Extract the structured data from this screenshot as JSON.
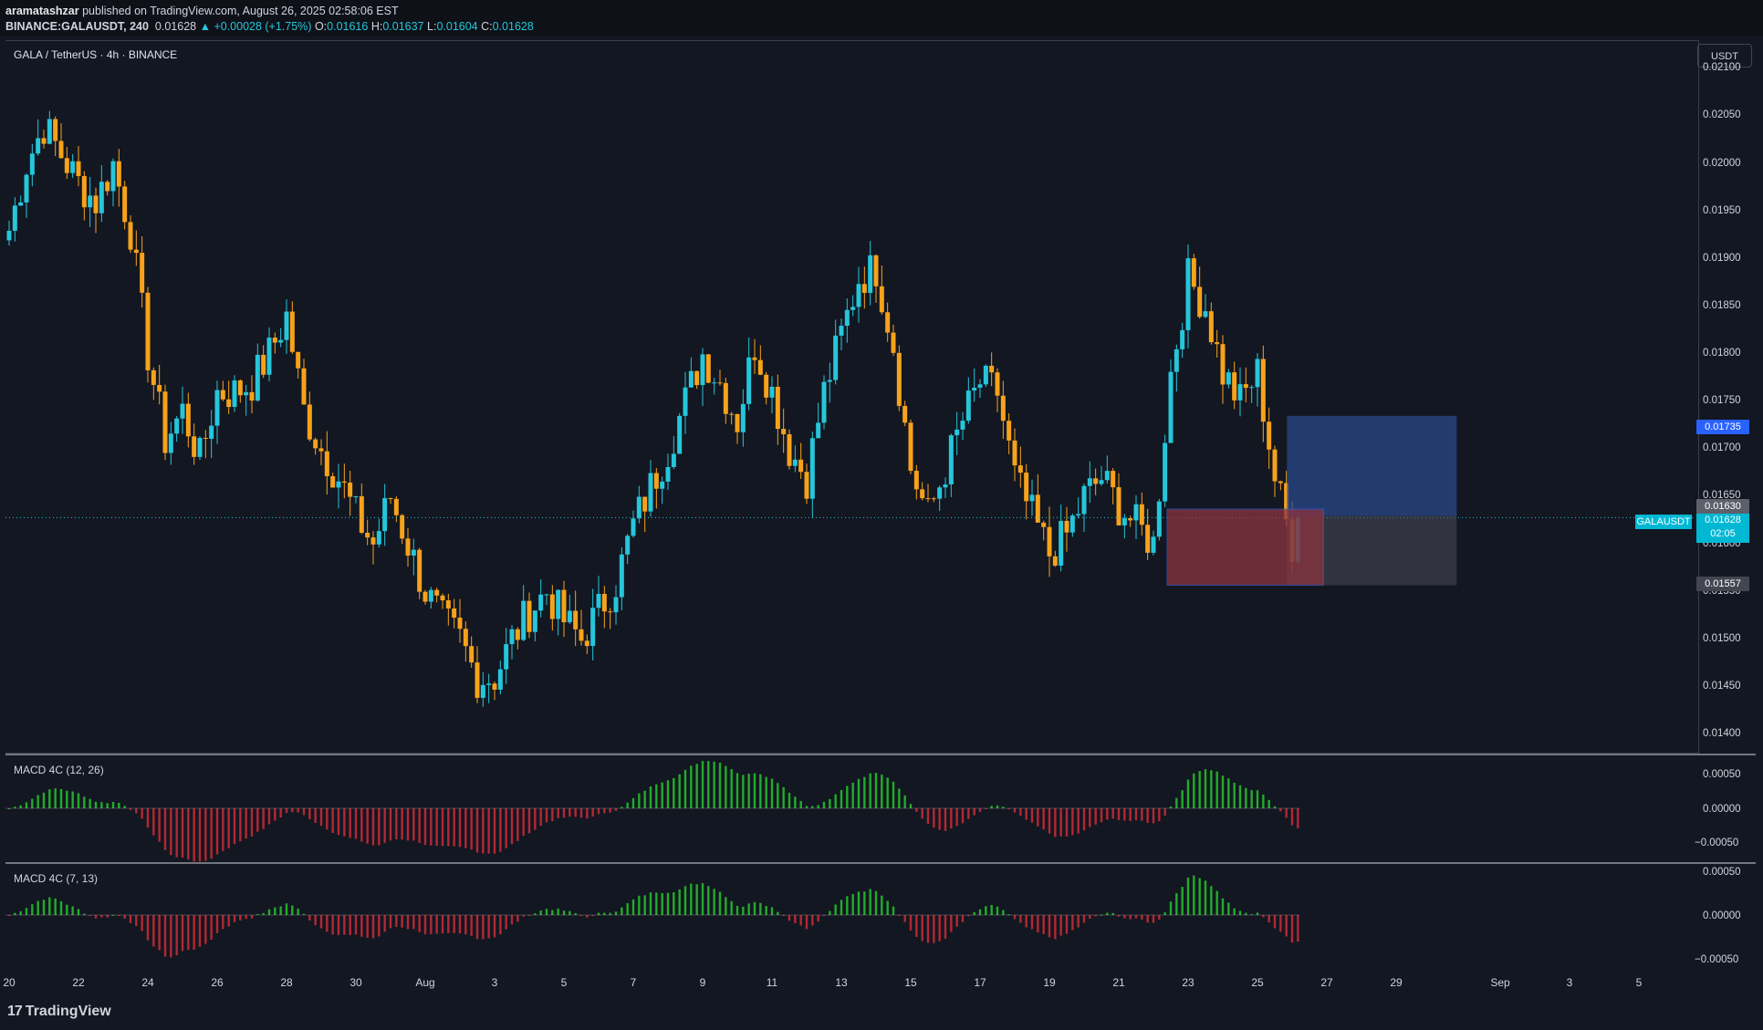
{
  "header": {
    "publisher_user": "aramatashzar",
    "publisher_text": " published on TradingView.com, August 26, 2025 02:58:06 EST",
    "symbol_line": "BINANCE:GALAUSDT, 240",
    "last": "0.01628",
    "change": "▲ +0.00028 (+1.75%)",
    "open_label": "O:",
    "open": "0.01616",
    "high_label": "H:",
    "high": "0.01637",
    "low_label": "L:",
    "low": "0.01604",
    "close_label": "C:",
    "close": "0.01628"
  },
  "chart_title": "GALA / TetherUS · 4h · BINANCE",
  "currency_button": "USDT",
  "price_axis": [
    "0.02100",
    "0.02050",
    "0.02000",
    "0.01950",
    "0.01900",
    "0.01850",
    "0.01800",
    "0.01750",
    "0.01700",
    "0.01650",
    "0.01600",
    "0.01550",
    "0.01500",
    "0.01450",
    "0.01400"
  ],
  "price_tags": {
    "target": "0.01735",
    "entry": "0.01630",
    "current_symbol": "GALAUSDT",
    "current": "0.01628",
    "countdown": "02:05",
    "stop": "0.01557"
  },
  "indicators": [
    {
      "label": "MACD 4C (12, 26)",
      "axis": [
        "0.00050",
        "0.00000",
        "−0.00050"
      ]
    },
    {
      "label": "MACD 4C (7, 13)",
      "axis": [
        "0.00050",
        "0.00000",
        "−0.00050"
      ]
    }
  ],
  "time_axis": [
    "20",
    "22",
    "24",
    "26",
    "28",
    "30",
    "Aug",
    "3",
    "5",
    "7",
    "9",
    "11",
    "13",
    "15",
    "17",
    "19",
    "21",
    "23",
    "25",
    "27",
    "29",
    "Sep",
    "3",
    "5"
  ],
  "brand": {
    "logo": "17",
    "name": "TradingView"
  },
  "colors": {
    "up": "#26c6da",
    "down": "#f7a21b",
    "bg": "#131722",
    "macd_pos": "#22ab2a",
    "macd_neg": "#b22833",
    "target_zone": "#2a4a8a",
    "stop_zone": "#8a3340"
  },
  "chart_data": {
    "type": "candlestick",
    "title": "GALA / TetherUS · 4h · BINANCE",
    "ylim": [
      0.0138,
      0.0213
    ],
    "x_range": [
      "Jul 20",
      "Sep 6"
    ],
    "x_ticks": [
      "20",
      "22",
      "24",
      "26",
      "28",
      "30",
      "Aug",
      "3",
      "5",
      "7",
      "9",
      "11",
      "13",
      "15",
      "17",
      "19",
      "21",
      "23",
      "25",
      "27",
      "29",
      "Sep",
      "3",
      "5"
    ],
    "close_path_approx": [
      [
        "Jul 20",
        0.0193
      ],
      [
        "Jul 20 12h",
        0.02
      ],
      [
        "Jul 21",
        0.0204
      ],
      [
        "Jul 21 12h",
        0.0201
      ],
      [
        "Jul 22",
        0.0198
      ],
      [
        "Jul 22 12h",
        0.0196
      ],
      [
        "Jul 23",
        0.02
      ],
      [
        "Jul 23 12h",
        0.0193
      ],
      [
        "Jul 24",
        0.018
      ],
      [
        "Jul 24 12h",
        0.0171
      ],
      [
        "Jul 25",
        0.0174
      ],
      [
        "Jul 25 12h",
        0.0169
      ],
      [
        "Jul 26",
        0.0176
      ],
      [
        "Jul 26 12h",
        0.0176
      ],
      [
        "Jul 27",
        0.0177
      ],
      [
        "Jul 27 12h",
        0.018
      ],
      [
        "Jul 28",
        0.0184
      ],
      [
        "Jul 28 12h",
        0.0174
      ],
      [
        "Jul 29",
        0.017
      ],
      [
        "Jul 29 12h",
        0.0167
      ],
      [
        "Jul 30",
        0.0163
      ],
      [
        "Jul 30 12h",
        0.016
      ],
      [
        "Jul 31",
        0.0165
      ],
      [
        "Jul 31 12h",
        0.016
      ],
      [
        "Aug 1",
        0.0155
      ],
      [
        "Aug 1 12h",
        0.0152
      ],
      [
        "Aug 2",
        0.015
      ],
      [
        "Aug 2 12h",
        0.0146
      ],
      [
        "Aug 3",
        0.0146
      ],
      [
        "Aug 3 12h",
        0.015
      ],
      [
        "Aug 4",
        0.0153
      ],
      [
        "Aug 4 12h",
        0.0155
      ],
      [
        "Aug 5",
        0.0152
      ],
      [
        "Aug 5 12h",
        0.015
      ],
      [
        "Aug 6",
        0.0153
      ],
      [
        "Aug 6 12h",
        0.0156
      ],
      [
        "Aug 7",
        0.0162
      ],
      [
        "Aug 7 12h",
        0.0166
      ],
      [
        "Aug 8",
        0.017
      ],
      [
        "Aug 8 12h",
        0.0175
      ],
      [
        "Aug 9",
        0.018
      ],
      [
        "Aug 9 12h",
        0.0177
      ],
      [
        "Aug 10",
        0.0173
      ],
      [
        "Aug 10 12h",
        0.0181
      ],
      [
        "Aug 11",
        0.0176
      ],
      [
        "Aug 11 12h",
        0.017
      ],
      [
        "Aug 12",
        0.0167
      ],
      [
        "Aug 12 12h",
        0.0176
      ],
      [
        "Aug 13",
        0.0182
      ],
      [
        "Aug 13 12h",
        0.0188
      ],
      [
        "Aug 14",
        0.0189
      ],
      [
        "Aug 14 12h",
        0.0181
      ],
      [
        "Aug 15",
        0.0168
      ],
      [
        "Aug 15 12h",
        0.0163
      ],
      [
        "Aug 16",
        0.0168
      ],
      [
        "Aug 16 12h",
        0.0173
      ],
      [
        "Aug 17",
        0.0177
      ],
      [
        "Aug 17 12h",
        0.0176
      ],
      [
        "Aug 18",
        0.0167
      ],
      [
        "Aug 18 12h",
        0.0163
      ],
      [
        "Aug 19",
        0.0159
      ],
      [
        "Aug 19 12h",
        0.0161
      ],
      [
        "Aug 20",
        0.0165
      ],
      [
        "Aug 20 12h",
        0.0167
      ],
      [
        "Aug 21",
        0.0164
      ],
      [
        "Aug 21 12h",
        0.0162
      ],
      [
        "Aug 22",
        0.016
      ],
      [
        "Aug 22 12h",
        0.0178
      ],
      [
        "Aug 23",
        0.0188
      ],
      [
        "Aug 23 12h",
        0.0185
      ],
      [
        "Aug 24",
        0.0178
      ],
      [
        "Aug 24 12h",
        0.0175
      ],
      [
        "Aug 25",
        0.0178
      ],
      [
        "Aug 25 12h",
        0.0167
      ],
      [
        "Aug 26",
        0.016
      ],
      [
        "Aug 26 4h",
        0.01628
      ]
    ],
    "position_tool": {
      "entry": 0.0163,
      "target": 0.01735,
      "stop": 0.01557
    },
    "macd_12_26_ylim": [
      -0.00065,
      0.00065
    ],
    "macd_7_13_ylim": [
      -0.00065,
      0.00065
    ]
  }
}
